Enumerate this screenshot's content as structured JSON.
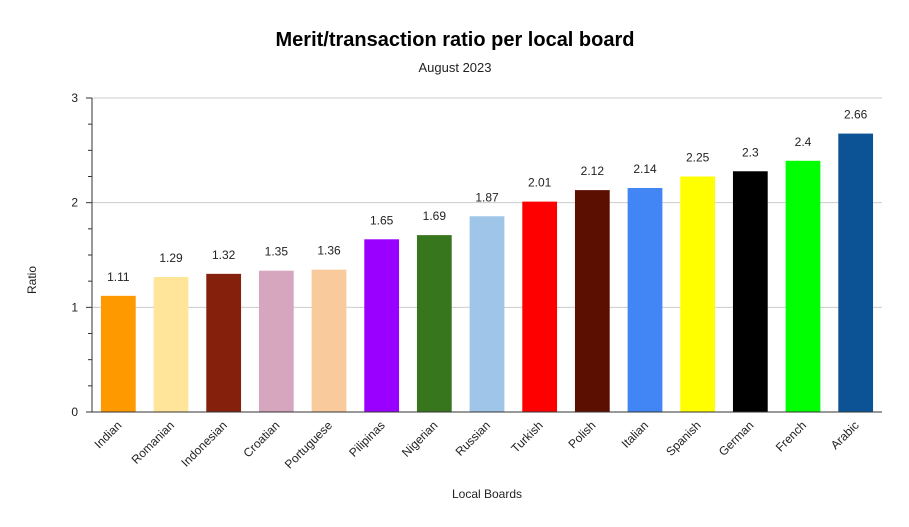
{
  "chart_data": {
    "type": "bar",
    "title": "Merit/transaction ratio per local board",
    "subtitle": "August 2023",
    "xlabel": "Local Boards",
    "ylabel": "Ratio",
    "ylim": [
      0,
      3
    ],
    "yticks": [
      "0",
      "1",
      "2",
      "3"
    ],
    "grid": true,
    "legend": "none",
    "categories": [
      "Indian",
      "Romanian",
      "Indonesian",
      "Croatian",
      "Portuguese",
      "Pilipinas",
      "Nigerian",
      "Russian",
      "Turkish",
      "Polish",
      "Italian",
      "Spanish",
      "German",
      "French",
      "Arabic"
    ],
    "values": [
      1.11,
      1.29,
      1.32,
      1.35,
      1.36,
      1.65,
      1.69,
      1.87,
      2.01,
      2.12,
      2.14,
      2.25,
      2.3,
      2.4,
      2.66
    ],
    "value_labels": [
      "1.11",
      "1.29",
      "1.32",
      "1.35",
      "1.36",
      "1.65",
      "1.69",
      "1.87",
      "2.01",
      "2.12",
      "2.14",
      "2.25",
      "2.3",
      "2.4",
      "2.66"
    ],
    "colors": [
      "#ff9900",
      "#ffe599",
      "#85200c",
      "#d5a6bd",
      "#f9cb9c",
      "#9900ff",
      "#38761d",
      "#9fc5e8",
      "#ff0000",
      "#5b0f00",
      "#4285f4",
      "#ffff00",
      "#000000",
      "#00ff00",
      "#0b5394"
    ]
  }
}
